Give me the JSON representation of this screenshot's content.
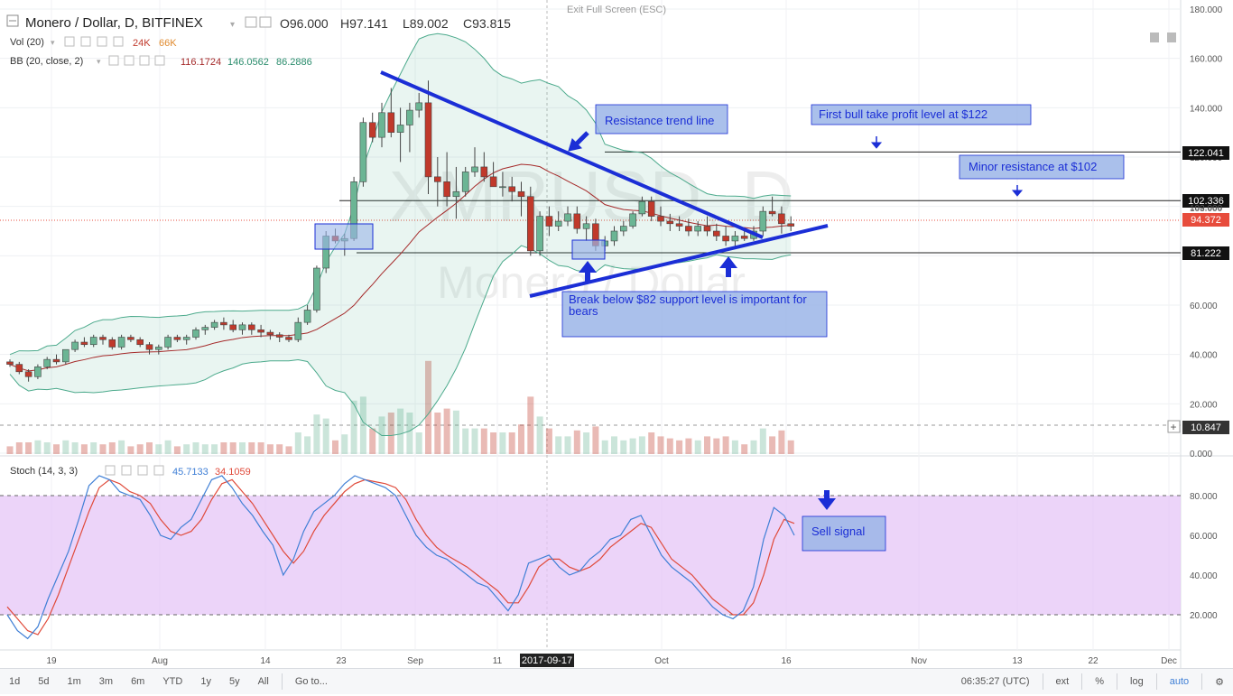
{
  "header": {
    "symbol": "Monero / Dollar, D, BITFINEX",
    "ohlc": {
      "o": "O96.000",
      "h": "H97.141",
      "l": "L89.002",
      "c": "C93.815"
    },
    "vol_label": "Vol (20)",
    "vol_values": [
      "24K",
      "66K"
    ],
    "bb_label": "BB (20, close, 2)",
    "bb_values": [
      "116.1724",
      "146.0562",
      "86.2886"
    ],
    "exit_fullscreen": "Exit Full Screen (ESC)"
  },
  "watermark": {
    "ticker": "XMRUSD, D",
    "name": "Monero / Dollar"
  },
  "stoch": {
    "label": "Stoch (14, 3, 3)",
    "k": "45.7133",
    "d": "34.1059"
  },
  "price_labels": {
    "r1": "122.041",
    "r2": "102.336",
    "r2_under": "103.000",
    "current": "94.372",
    "s1": "81.222",
    "vol": "10.847"
  },
  "annotations": {
    "resistance": "Resistance trend line",
    "bull_tp": "First bull take profit level at $122",
    "minor_res": "Minor resistance at $102",
    "support": "Break below $82 support level is important for bears",
    "sell": "Sell signal"
  },
  "bottom_bar": {
    "ranges": [
      "1d",
      "5d",
      "1m",
      "3m",
      "6m",
      "YTD",
      "1y",
      "5y",
      "All"
    ],
    "goto": "Go to...",
    "time": "06:35:27 (UTC)",
    "opts": [
      "ext",
      "%",
      "log",
      "auto"
    ]
  },
  "colors": {
    "up": "#6bb594",
    "down": "#c0392b",
    "bb": "#4caa8c",
    "basis": "#a52a2a",
    "line": "#1b2ed6",
    "box": "#9bb5e8",
    "stochK": "#3f7fd6",
    "stochD": "#e04a3a",
    "stochBg": "#e6c6f7"
  },
  "chart_data": [
    {
      "type": "candlestick",
      "title": "Monero / Dollar, D, BITFINEX",
      "ylim": [
        0,
        180
      ],
      "y_ticks": [
        "180.000",
        "160.000",
        "140.000",
        "120.000",
        "100.000",
        "80.000",
        "60.000",
        "40.000",
        "20.000",
        "0.000"
      ],
      "x_ticks": [
        "19",
        "Aug",
        "14",
        "23",
        "Sep",
        "11",
        "2017-09-17",
        "Oct",
        "16",
        "Nov",
        "13",
        "22",
        "Dec"
      ],
      "candles": [
        [
          37,
          38,
          35,
          36
        ],
        [
          36,
          37,
          32,
          33
        ],
        [
          33,
          34,
          29,
          31
        ],
        [
          31,
          36,
          30,
          35
        ],
        [
          35,
          39,
          34,
          38
        ],
        [
          38,
          40,
          36,
          37
        ],
        [
          37,
          42,
          36,
          42
        ],
        [
          42,
          46,
          41,
          45
        ],
        [
          45,
          47,
          43,
          44
        ],
        [
          44,
          48,
          43,
          47
        ],
        [
          47,
          48,
          44,
          46
        ],
        [
          46,
          47,
          42,
          43
        ],
        [
          43,
          48,
          42,
          47
        ],
        [
          47,
          48,
          45,
          46
        ],
        [
          46,
          47,
          43,
          44
        ],
        [
          44,
          45,
          40,
          42
        ],
        [
          42,
          44,
          40,
          43
        ],
        [
          43,
          48,
          42,
          47
        ],
        [
          47,
          48,
          45,
          46
        ],
        [
          46,
          48,
          44,
          47
        ],
        [
          47,
          51,
          46,
          50
        ],
        [
          50,
          52,
          48,
          51
        ],
        [
          51,
          54,
          50,
          53
        ],
        [
          53,
          55,
          50,
          52
        ],
        [
          52,
          54,
          49,
          50
        ],
        [
          50,
          53,
          48,
          52
        ],
        [
          52,
          53,
          48,
          50
        ],
        [
          50,
          52,
          47,
          49
        ],
        [
          49,
          50,
          46,
          48
        ],
        [
          48,
          49,
          45,
          47
        ],
        [
          47,
          48,
          45,
          46
        ],
        [
          46,
          55,
          45,
          53
        ],
        [
          53,
          60,
          52,
          58
        ],
        [
          58,
          76,
          57,
          75
        ],
        [
          75,
          90,
          73,
          88
        ],
        [
          88,
          91,
          85,
          86
        ],
        [
          86,
          89,
          80,
          87
        ],
        [
          87,
          112,
          86,
          110
        ],
        [
          110,
          136,
          108,
          134
        ],
        [
          134,
          138,
          126,
          128
        ],
        [
          128,
          142,
          124,
          138
        ],
        [
          138,
          148,
          128,
          130
        ],
        [
          130,
          140,
          118,
          133
        ],
        [
          133,
          142,
          122,
          139
        ],
        [
          139,
          146,
          136,
          142
        ],
        [
          142,
          151,
          105,
          112
        ],
        [
          112,
          120,
          100,
          110
        ],
        [
          110,
          122,
          100,
          104
        ],
        [
          104,
          116,
          95,
          106
        ],
        [
          106,
          116,
          104,
          114
        ],
        [
          114,
          124,
          112,
          116
        ],
        [
          116,
          122,
          110,
          112
        ],
        [
          112,
          118,
          108,
          108
        ],
        [
          108,
          114,
          104,
          108
        ],
        [
          108,
          112,
          102,
          106
        ],
        [
          106,
          110,
          96,
          104
        ],
        [
          104,
          108,
          80,
          82
        ],
        [
          82,
          98,
          80,
          96
        ],
        [
          96,
          100,
          88,
          92
        ],
        [
          92,
          98,
          90,
          94
        ],
        [
          94,
          100,
          92,
          97
        ],
        [
          97,
          100,
          89,
          91
        ],
        [
          91,
          96,
          86,
          93
        ],
        [
          93,
          95,
          82,
          84
        ],
        [
          84,
          88,
          82,
          86
        ],
        [
          86,
          92,
          84,
          90
        ],
        [
          90,
          94,
          88,
          92
        ],
        [
          92,
          98,
          91,
          97
        ],
        [
          97,
          104,
          96,
          102
        ],
        [
          102,
          104,
          94,
          96
        ],
        [
          96,
          100,
          92,
          94
        ],
        [
          94,
          97,
          90,
          93
        ],
        [
          93,
          96,
          90,
          92
        ],
        [
          92,
          95,
          88,
          90
        ],
        [
          90,
          94,
          88,
          92
        ],
        [
          92,
          96,
          88,
          90
        ],
        [
          90,
          93,
          86,
          88
        ],
        [
          88,
          92,
          84,
          86
        ],
        [
          86,
          90,
          84,
          88
        ],
        [
          88,
          90,
          86,
          87
        ],
        [
          87,
          92,
          86,
          90
        ],
        [
          90,
          100,
          88,
          98
        ],
        [
          98,
          104,
          96,
          97
        ],
        [
          97,
          100,
          89,
          93
        ],
        [
          93,
          96,
          90,
          92
        ]
      ]
    },
    {
      "type": "line",
      "title": "Stoch (14, 3, 3)",
      "ylim": [
        0,
        100
      ],
      "y_ticks": [
        "80.000",
        "60.000",
        "40.000",
        "20.000"
      ],
      "series": [
        {
          "name": "%K",
          "values": [
            20,
            12,
            8,
            14,
            28,
            40,
            52,
            68,
            85,
            90,
            88,
            82,
            80,
            78,
            70,
            60,
            58,
            64,
            68,
            78,
            88,
            90,
            84,
            76,
            70,
            62,
            55,
            40,
            48,
            62,
            72,
            76,
            80,
            86,
            90,
            88,
            86,
            84,
            80,
            70,
            60,
            54,
            50,
            48,
            44,
            40,
            36,
            34,
            28,
            22,
            30,
            46,
            48,
            50,
            44,
            40,
            42,
            48,
            52,
            58,
            60,
            68,
            70,
            60,
            50,
            44,
            40,
            36,
            30,
            24,
            20,
            18,
            22,
            34,
            58,
            74,
            70,
            60
          ]
        },
        {
          "name": "%D",
          "values": [
            24,
            18,
            12,
            10,
            18,
            30,
            44,
            58,
            72,
            84,
            88,
            86,
            82,
            80,
            76,
            68,
            62,
            60,
            62,
            68,
            78,
            86,
            88,
            82,
            76,
            68,
            60,
            52,
            46,
            52,
            62,
            70,
            76,
            82,
            86,
            88,
            87,
            86,
            84,
            78,
            68,
            60,
            54,
            50,
            47,
            44,
            40,
            36,
            32,
            26,
            26,
            34,
            44,
            48,
            48,
            44,
            42,
            44,
            48,
            54,
            58,
            62,
            66,
            64,
            56,
            48,
            44,
            40,
            34,
            28,
            24,
            20,
            20,
            26,
            40,
            58,
            68,
            66
          ]
        }
      ]
    }
  ]
}
